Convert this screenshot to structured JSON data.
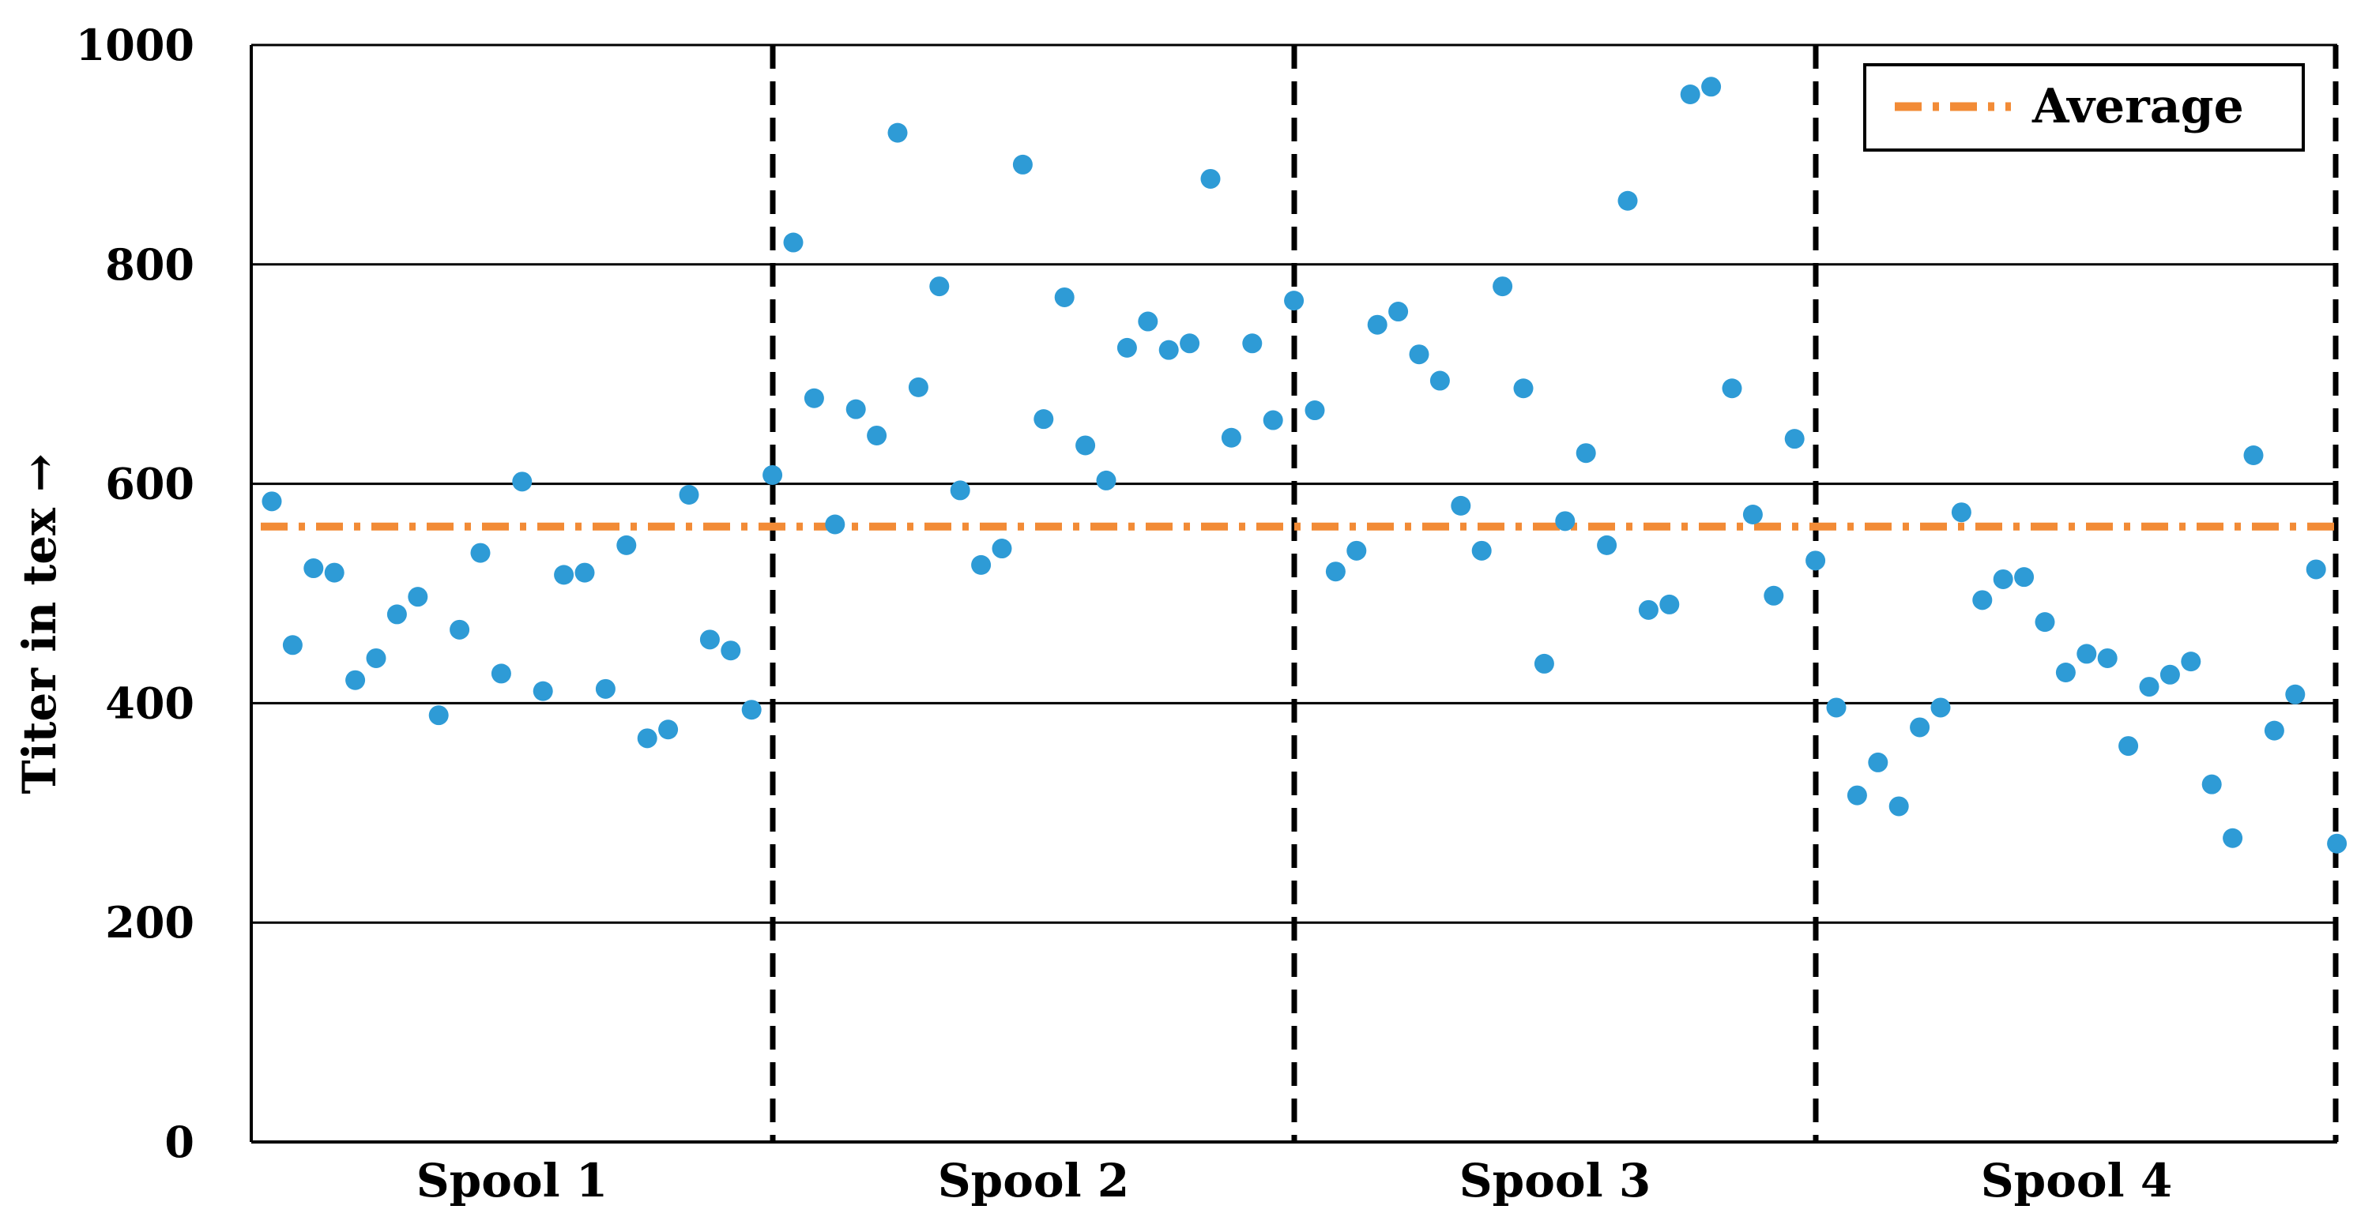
{
  "chart_data": {
    "type": "scatter",
    "ylabel": "Titer in tex →",
    "xlabel": "",
    "ylim": [
      0,
      1000
    ],
    "yticks": [
      0,
      200,
      400,
      600,
      800,
      1000
    ],
    "grid": true,
    "legend_position": "top-right",
    "categories": [
      "Spool 1",
      "Spool 2",
      "Spool 3",
      "Spool 4"
    ],
    "points_per_category": 25,
    "series": [
      {
        "color": "#2e9bd6",
        "values": [
          584,
          453,
          523,
          519,
          421,
          441,
          481,
          497,
          389,
          467,
          537,
          427,
          602,
          411,
          517,
          519,
          413,
          544,
          368,
          376,
          590,
          458,
          448,
          394,
          608,
          820,
          678,
          563,
          668,
          644,
          920,
          688,
          780,
          594,
          526,
          541,
          891,
          659,
          770,
          635,
          603,
          724,
          748,
          722,
          728,
          878,
          642,
          728,
          658,
          767,
          667,
          520,
          539,
          745,
          757,
          718,
          694,
          580,
          539,
          780,
          687,
          436,
          566,
          628,
          544,
          858,
          485,
          490,
          955,
          962,
          687,
          572,
          498,
          641,
          530,
          396,
          316,
          346,
          306,
          378,
          396,
          574,
          494,
          513,
          515,
          474,
          428,
          445,
          441,
          361,
          415,
          426,
          438,
          326,
          277,
          626,
          375,
          408,
          522,
          272
        ]
      },
      {
        "name": "Average",
        "color": "#f28b36",
        "value": 561
      }
    ]
  }
}
